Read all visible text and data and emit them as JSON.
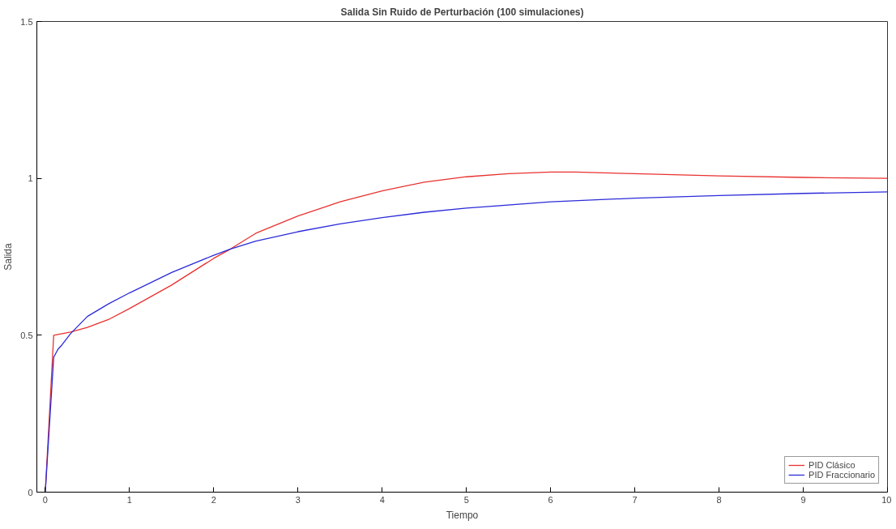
{
  "chart_data": {
    "type": "line",
    "title": "Salida Sin Ruido de Perturbación (100 simulaciones)",
    "xlabel": "Tiempo",
    "ylabel": "Salida",
    "xlim": [
      -0.1,
      10
    ],
    "ylim": [
      0,
      1.5
    ],
    "xticks": [
      0,
      1,
      2,
      3,
      4,
      5,
      6,
      7,
      8,
      9,
      10
    ],
    "yticks": [
      0,
      0.5,
      1,
      1.5
    ],
    "grid": false,
    "legend": "bottom right",
    "line_style": "solid",
    "series": [
      {
        "name": "PID Clásico",
        "color": "#e8312f",
        "x": [
          0,
          0.1,
          0.2,
          0.3,
          0.5,
          0.75,
          1,
          1.5,
          2,
          2.2,
          2.5,
          3,
          3.5,
          4,
          4.5,
          5,
          5.5,
          6,
          6.3,
          7,
          8,
          9,
          10
        ],
        "values": [
          0,
          0.5,
          0.505,
          0.51,
          0.525,
          0.55,
          0.585,
          0.66,
          0.745,
          0.775,
          0.825,
          0.88,
          0.925,
          0.96,
          0.988,
          1.005,
          1.015,
          1.02,
          1.02,
          1.015,
          1.008,
          1.003,
          1.0
        ]
      },
      {
        "name": "PID Fraccionario",
        "color": "#2b2bd9",
        "x": [
          0,
          0.1,
          0.15,
          0.2,
          0.3,
          0.5,
          0.75,
          1,
          1.5,
          2,
          2.2,
          2.5,
          3,
          3.5,
          4,
          4.5,
          5,
          6,
          7,
          8,
          9,
          10
        ],
        "values": [
          0,
          0.43,
          0.455,
          0.47,
          0.505,
          0.56,
          0.6,
          0.635,
          0.7,
          0.755,
          0.775,
          0.8,
          0.83,
          0.855,
          0.875,
          0.892,
          0.905,
          0.925,
          0.937,
          0.945,
          0.952,
          0.957
        ]
      }
    ]
  }
}
